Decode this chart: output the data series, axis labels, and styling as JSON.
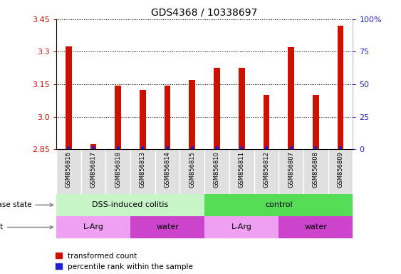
{
  "title": "GDS4368 / 10338697",
  "samples": [
    "GSM856816",
    "GSM856817",
    "GSM856818",
    "GSM856813",
    "GSM856814",
    "GSM856815",
    "GSM856810",
    "GSM856811",
    "GSM856812",
    "GSM856807",
    "GSM856808",
    "GSM856809"
  ],
  "red_values": [
    3.325,
    2.875,
    3.145,
    3.125,
    3.145,
    3.17,
    3.225,
    3.225,
    3.102,
    3.32,
    3.102,
    3.42
  ],
  "blue_percentiles": [
    2,
    2,
    2,
    2,
    2,
    2,
    2,
    2,
    2,
    2,
    2,
    2
  ],
  "ylim": [
    2.85,
    3.45
  ],
  "yticks": [
    2.85,
    3.0,
    3.15,
    3.3,
    3.45
  ],
  "right_yticks": [
    0,
    25,
    50,
    75,
    100
  ],
  "right_ylim": [
    0,
    100
  ],
  "disease_state": [
    {
      "label": "DSS-induced colitis",
      "start": 0,
      "end": 6,
      "color": "#c8f5c8"
    },
    {
      "label": "control",
      "start": 6,
      "end": 12,
      "color": "#55dd55"
    }
  ],
  "agent": [
    {
      "label": "L-Arg",
      "start": 0,
      "end": 3,
      "color": "#f0a0f0"
    },
    {
      "label": "water",
      "start": 3,
      "end": 6,
      "color": "#cc44cc"
    },
    {
      "label": "L-Arg",
      "start": 6,
      "end": 9,
      "color": "#f0a0f0"
    },
    {
      "label": "water",
      "start": 9,
      "end": 12,
      "color": "#cc44cc"
    }
  ],
  "bar_color": "#cc1100",
  "blue_color": "#2222cc",
  "title_fontsize": 10,
  "axis_label_color_red": "#cc1100",
  "axis_label_color_blue": "#2222cc",
  "bar_width": 0.25,
  "blue_bar_width": 0.12
}
